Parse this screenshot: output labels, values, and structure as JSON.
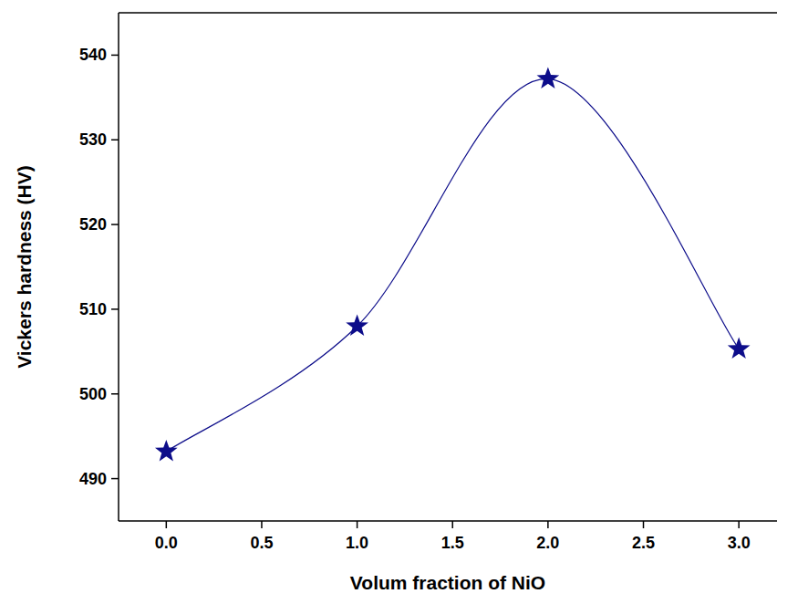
{
  "chart_data": {
    "type": "line",
    "x_label": "Volum fraction of NiO",
    "y_label": "Vickers hardness (HV)",
    "x": [
      0,
      1,
      2,
      3
    ],
    "values": [
      493.2,
      508.0,
      537.2,
      505.3
    ],
    "color": "#0d0d8a",
    "marker": "star",
    "line_style": "smooth",
    "xlim": [
      -0.25,
      3.2
    ],
    "ylim": [
      485,
      545
    ],
    "xticks": [
      {
        "value": 0,
        "label": "0.0"
      },
      0.5,
      {
        "value": 1,
        "label": "1.0"
      },
      1.5,
      {
        "value": 2,
        "label": "2.0"
      },
      2.5,
      {
        "value": 3,
        "label": "3.0"
      }
    ],
    "yticks": [
      490,
      500,
      510,
      520,
      530,
      540
    ],
    "grid": false
  }
}
